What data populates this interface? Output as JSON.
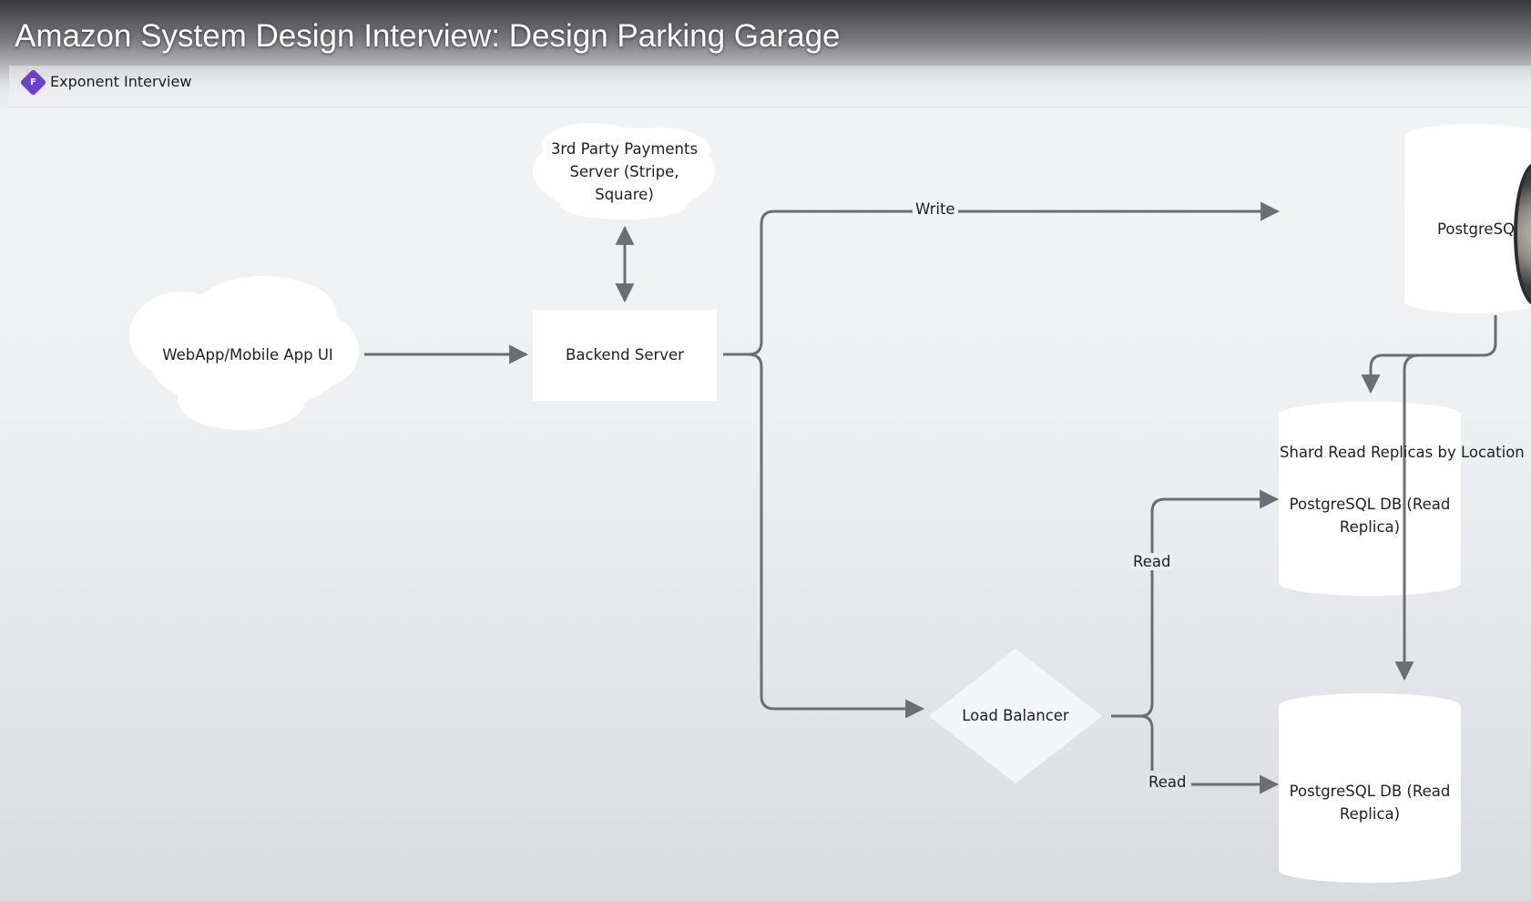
{
  "video": {
    "title": "Amazon System Design Interview: Design Parking Garage"
  },
  "tab": {
    "logo_letter": "F",
    "name": "Exponent Interview",
    "logo_color": "#6b3fd4"
  },
  "diagram": {
    "nodes": {
      "webapp": "WebApp/Mobile App UI",
      "payments": "3rd Party Payments Server (Stripe, Square)",
      "backend": "Backend Server",
      "primary_db": "PostgreSQ",
      "load_balancer": "Load Balancer",
      "shard_note": "Shard Read Replicas by Location",
      "replica_1": "PostgreSQL DB (Read Replica)",
      "replica_2": "PostgreSQL DB (Read Replica)"
    },
    "edges": {
      "write": "Write",
      "read_1": "Read",
      "read_2": "Read"
    },
    "colors": {
      "line": "#6c6e73",
      "node_fill": "#ffffff"
    }
  }
}
